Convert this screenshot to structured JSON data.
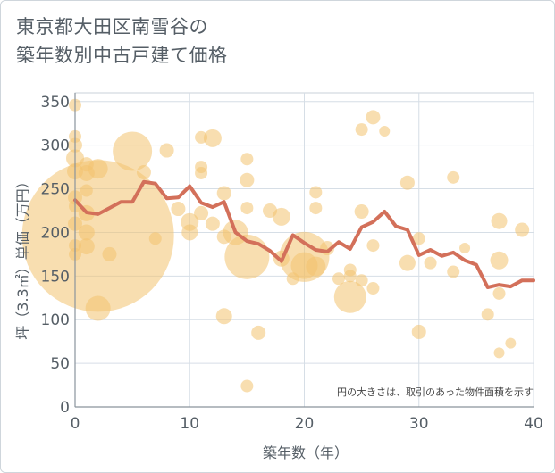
{
  "title_lines": [
    "東京都大田区南雪谷の",
    "築年数別中古戸建て価格"
  ],
  "chart_data": {
    "type": "scatter",
    "title": "東京都大田区南雪谷の 築年数別中古戸建て価格",
    "xlabel": "築年数（年）",
    "ylabel": "坪（3.3㎡）単価（万円）",
    "xlim": [
      0,
      40
    ],
    "ylim": [
      0,
      360
    ],
    "x_ticks": [
      "0",
      "10",
      "20",
      "30",
      "40"
    ],
    "y_ticks": [
      "0",
      "50",
      "100",
      "150",
      "200",
      "250",
      "300",
      "350"
    ],
    "grid": true,
    "note": "円の大きさは、取引のあった物件面積を示す",
    "bubble_color": "#f3c36f",
    "line_color": "#d3705a",
    "series": [
      {
        "kind": "bubble",
        "points": [
          {
            "x": 0,
            "y": 346,
            "size": 7
          },
          {
            "x": 0,
            "y": 310,
            "size": 7
          },
          {
            "x": 0,
            "y": 300,
            "size": 8
          },
          {
            "x": 0,
            "y": 285,
            "size": 10
          },
          {
            "x": 0,
            "y": 270,
            "size": 9
          },
          {
            "x": 0,
            "y": 240,
            "size": 8
          },
          {
            "x": 0,
            "y": 230,
            "size": 7
          },
          {
            "x": 0,
            "y": 210,
            "size": 8
          },
          {
            "x": 0,
            "y": 185,
            "size": 7
          },
          {
            "x": 0,
            "y": 175,
            "size": 7
          },
          {
            "x": 1,
            "y": 278,
            "size": 8
          },
          {
            "x": 1,
            "y": 268,
            "size": 9
          },
          {
            "x": 1,
            "y": 248,
            "size": 7
          },
          {
            "x": 1,
            "y": 222,
            "size": 9
          },
          {
            "x": 1,
            "y": 200,
            "size": 9
          },
          {
            "x": 1,
            "y": 184,
            "size": 9
          },
          {
            "x": 2,
            "y": 273,
            "size": 11
          },
          {
            "x": 2,
            "y": 196,
            "size": 85
          },
          {
            "x": 2,
            "y": 113,
            "size": 14
          },
          {
            "x": 3,
            "y": 175,
            "size": 8
          },
          {
            "x": 5,
            "y": 293,
            "size": 22
          },
          {
            "x": 6,
            "y": 269,
            "size": 8
          },
          {
            "x": 7,
            "y": 193,
            "size": 7
          },
          {
            "x": 8,
            "y": 294,
            "size": 8
          },
          {
            "x": 9,
            "y": 227,
            "size": 8
          },
          {
            "x": 10,
            "y": 212,
            "size": 10
          },
          {
            "x": 10,
            "y": 200,
            "size": 9
          },
          {
            "x": 11,
            "y": 309,
            "size": 7
          },
          {
            "x": 11,
            "y": 275,
            "size": 7
          },
          {
            "x": 11,
            "y": 268,
            "size": 7
          },
          {
            "x": 11,
            "y": 222,
            "size": 8
          },
          {
            "x": 12,
            "y": 308,
            "size": 10
          },
          {
            "x": 12,
            "y": 210,
            "size": 8
          },
          {
            "x": 13,
            "y": 245,
            "size": 8
          },
          {
            "x": 13,
            "y": 195,
            "size": 8
          },
          {
            "x": 13,
            "y": 104,
            "size": 9
          },
          {
            "x": 14,
            "y": 200,
            "size": 14
          },
          {
            "x": 15,
            "y": 284,
            "size": 7
          },
          {
            "x": 15,
            "y": 260,
            "size": 8
          },
          {
            "x": 15,
            "y": 228,
            "size": 7
          },
          {
            "x": 15,
            "y": 172,
            "size": 25
          },
          {
            "x": 15,
            "y": 24,
            "size": 7
          },
          {
            "x": 16,
            "y": 85,
            "size": 8
          },
          {
            "x": 17,
            "y": 225,
            "size": 8
          },
          {
            "x": 18,
            "y": 218,
            "size": 10
          },
          {
            "x": 18,
            "y": 170,
            "size": 9
          },
          {
            "x": 19,
            "y": 147,
            "size": 7
          },
          {
            "x": 20,
            "y": 172,
            "size": 28
          },
          {
            "x": 20,
            "y": 162,
            "size": 15
          },
          {
            "x": 21,
            "y": 246,
            "size": 7
          },
          {
            "x": 21,
            "y": 228,
            "size": 7
          },
          {
            "x": 21,
            "y": 161,
            "size": 11
          },
          {
            "x": 22,
            "y": 182,
            "size": 8
          },
          {
            "x": 23,
            "y": 147,
            "size": 7
          },
          {
            "x": 24,
            "y": 157,
            "size": 7
          },
          {
            "x": 24,
            "y": 150,
            "size": 7
          },
          {
            "x": 24,
            "y": 126,
            "size": 18
          },
          {
            "x": 25,
            "y": 318,
            "size": 7
          },
          {
            "x": 25,
            "y": 224,
            "size": 8
          },
          {
            "x": 25,
            "y": 145,
            "size": 7
          },
          {
            "x": 26,
            "y": 332,
            "size": 8
          },
          {
            "x": 26,
            "y": 185,
            "size": 7
          },
          {
            "x": 26,
            "y": 136,
            "size": 7
          },
          {
            "x": 27,
            "y": 316,
            "size": 6
          },
          {
            "x": 29,
            "y": 257,
            "size": 8
          },
          {
            "x": 29,
            "y": 165,
            "size": 9
          },
          {
            "x": 30,
            "y": 193,
            "size": 7
          },
          {
            "x": 30,
            "y": 86,
            "size": 8
          },
          {
            "x": 31,
            "y": 165,
            "size": 7
          },
          {
            "x": 33,
            "y": 263,
            "size": 7
          },
          {
            "x": 33,
            "y": 155,
            "size": 7
          },
          {
            "x": 34,
            "y": 182,
            "size": 6
          },
          {
            "x": 36,
            "y": 106,
            "size": 7
          },
          {
            "x": 37,
            "y": 213,
            "size": 9
          },
          {
            "x": 37,
            "y": 168,
            "size": 10
          },
          {
            "x": 37,
            "y": 130,
            "size": 7
          },
          {
            "x": 37,
            "y": 62,
            "size": 6
          },
          {
            "x": 38,
            "y": 73,
            "size": 6
          },
          {
            "x": 39,
            "y": 203,
            "size": 8
          }
        ]
      },
      {
        "kind": "line",
        "x": [
          0,
          1,
          2,
          3,
          4,
          5,
          6,
          7,
          8,
          9,
          10,
          11,
          12,
          13,
          14,
          15,
          16,
          17,
          18,
          19,
          20,
          21,
          22,
          23,
          24,
          25,
          26,
          27,
          28,
          29,
          30,
          31,
          32,
          33,
          34,
          35,
          36,
          37,
          38,
          39,
          40
        ],
        "y": [
          237,
          223,
          221,
          228,
          235,
          235,
          258,
          256,
          239,
          240,
          253,
          234,
          229,
          235,
          200,
          190,
          187,
          179,
          167,
          197,
          188,
          180,
          178,
          189,
          181,
          206,
          212,
          224,
          207,
          203,
          174,
          180,
          173,
          177,
          168,
          163,
          137,
          140,
          138,
          145,
          145
        ]
      }
    ]
  }
}
